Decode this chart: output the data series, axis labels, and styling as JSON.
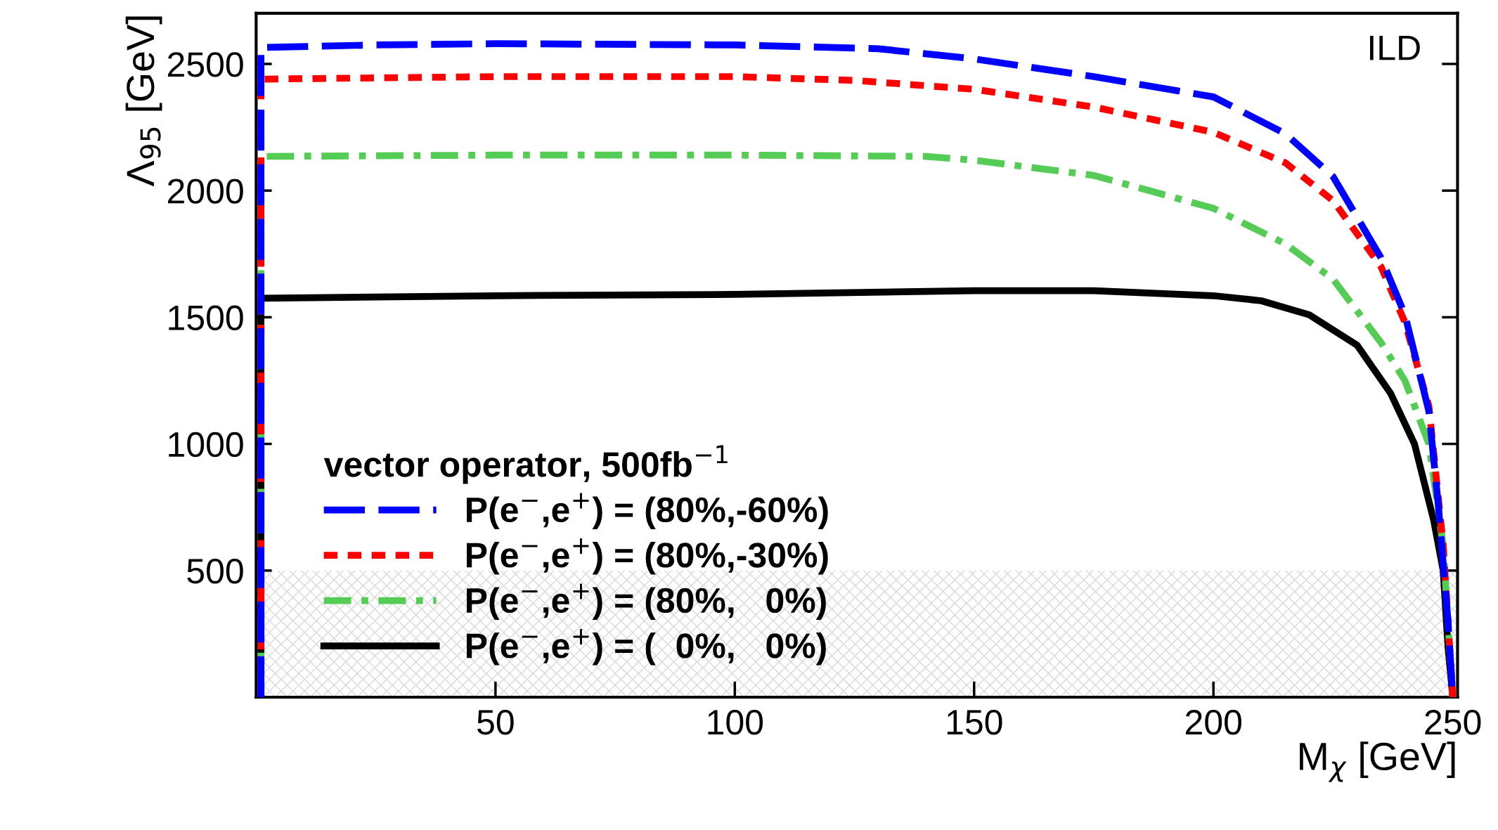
{
  "chart_data": {
    "type": "line",
    "xlabel": "M$_{χ}$ [GeV]",
    "ylabel": "Λ$_{95}$ [GeV]",
    "legend_title": "vector operator, 500fb$^{−1}$",
    "annotations": [
      "ILD"
    ],
    "xlim": [
      0,
      251
    ],
    "ylim": [
      0,
      2700
    ],
    "xticks": [
      50,
      100,
      150,
      200,
      250
    ],
    "yticks": [
      500,
      1000,
      1500,
      2000,
      2500
    ],
    "grid": false,
    "legend": "bottom left",
    "bands": [
      {
        "axis": "y",
        "from": 0,
        "to": 500,
        "color": "#d9d9d9"
      }
    ],
    "series": [
      {
        "name": "P(e$^{−}$,e$^{+}$) = (80%,-60%)",
        "color": "#0000ff",
        "line_style": "dashed",
        "x": [
          1,
          1,
          25,
          50,
          100,
          130,
          150,
          175,
          200,
          215,
          225,
          235,
          240,
          245,
          247,
          249,
          250
        ],
        "values": [
          0,
          2565,
          2575,
          2580,
          2575,
          2560,
          2520,
          2450,
          2370,
          2225,
          2055,
          1735,
          1510,
          1130,
          755,
          300,
          0
        ]
      },
      {
        "name": "P(e$^{−}$,e$^{+}$) = (80%,-30%)",
        "color": "#ff0000",
        "line_style": "dotted",
        "x": [
          1,
          1,
          50,
          100,
          125,
          150,
          175,
          200,
          215,
          225,
          235,
          240,
          245,
          248,
          250
        ],
        "values": [
          0,
          2440,
          2450,
          2450,
          2435,
          2400,
          2330,
          2230,
          2110,
          1960,
          1700,
          1480,
          1150,
          600,
          0
        ]
      },
      {
        "name": "P(e$^{−}$,e$^{+}$) = (80%,   0%)",
        "color": "#55cc55",
        "line_style": "dashdot",
        "x": [
          1,
          1,
          50,
          100,
          140,
          150,
          175,
          200,
          215,
          225,
          235,
          240,
          245,
          248,
          250
        ],
        "values": [
          0,
          2135,
          2140,
          2140,
          2135,
          2120,
          2060,
          1930,
          1790,
          1650,
          1400,
          1250,
          1000,
          600,
          0
        ]
      },
      {
        "name": "P(e$^{−}$,e$^{+}$) = (  0%,   0%)",
        "color": "#000000",
        "line_style": "solid",
        "x": [
          1,
          1,
          50,
          100,
          150,
          175,
          200,
          210,
          220,
          230,
          237,
          242,
          246,
          248,
          249,
          250
        ],
        "values": [
          0,
          1575,
          1585,
          1590,
          1605,
          1605,
          1585,
          1565,
          1510,
          1390,
          1200,
          1000,
          700,
          500,
          200,
          0
        ]
      }
    ]
  }
}
